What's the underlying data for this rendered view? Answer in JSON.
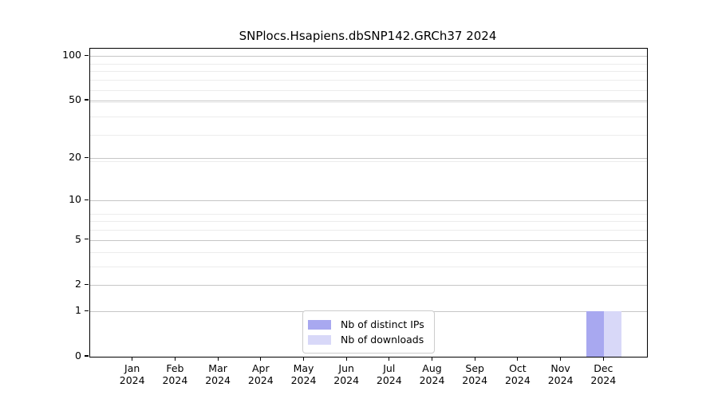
{
  "chart_data": {
    "type": "bar",
    "title": "SNPlocs.Hsapiens.dbSNP142.GRCh37 2024",
    "categories": [
      "Jan 2024",
      "Feb 2024",
      "Mar 2024",
      "Apr 2024",
      "May 2024",
      "Jun 2024",
      "Jul 2024",
      "Aug 2024",
      "Sep 2024",
      "Oct 2024",
      "Nov 2024",
      "Dec 2024"
    ],
    "month_labels": [
      "Jan",
      "Feb",
      "Mar",
      "Apr",
      "May",
      "Jun",
      "Jul",
      "Aug",
      "Sep",
      "Oct",
      "Nov",
      "Dec"
    ],
    "year_label": "2024",
    "series": [
      {
        "name": "Nb of distinct IPs",
        "color": "#a8a8f0",
        "values": [
          0,
          0,
          0,
          0,
          0,
          0,
          0,
          0,
          0,
          0,
          0,
          1
        ]
      },
      {
        "name": "Nb of downloads",
        "color": "#d8d8f8",
        "values": [
          0,
          0,
          0,
          0,
          0,
          0,
          0,
          0,
          0,
          0,
          0,
          1
        ]
      }
    ],
    "xlabel": "",
    "ylabel": "",
    "yscale": "log1p",
    "yticks": [
      0,
      1,
      2,
      5,
      10,
      20,
      50,
      100
    ],
    "minor_gridline_values": [
      3,
      4,
      6,
      7,
      8,
      19,
      29,
      39,
      49,
      59,
      69,
      79,
      89
    ],
    "ylim": [
      0,
      112
    ],
    "grid": true,
    "legend_position": "lower center",
    "colors": {
      "major_grid": "#c6c6c6",
      "minor_grid": "#ececec",
      "axis": "#000000",
      "text": "#000000",
      "legend_border": "#cccccc",
      "background": "#ffffff"
    }
  }
}
